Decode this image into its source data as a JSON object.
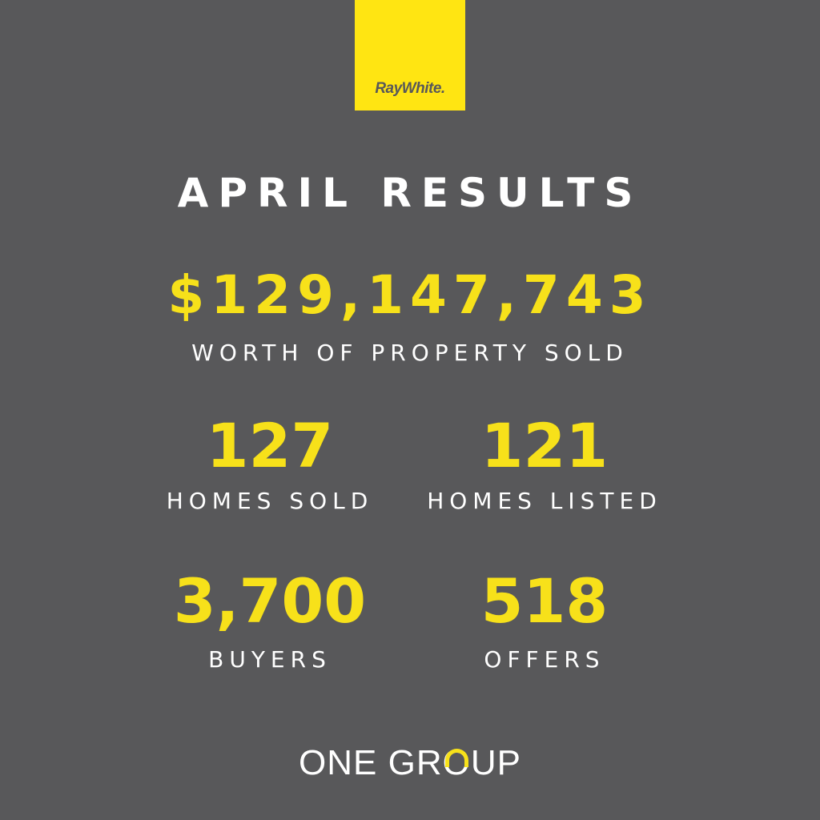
{
  "brand": {
    "logo_text": "RayWhite.",
    "logo_color": "#ffe512"
  },
  "title": "APRIL RESULTS",
  "headline": {
    "value": "$129,147,743",
    "label": "WORTH OF PROPERTY SOLD"
  },
  "stats": [
    {
      "value": "127",
      "label": "HOMES SOLD"
    },
    {
      "value": "121",
      "label": "HOMES LISTED"
    },
    {
      "value": "3,700",
      "label": "BUYERS"
    },
    {
      "value": "518",
      "label": "OFFERS"
    }
  ],
  "footer": {
    "part1": "ONE GR",
    "o": "O",
    "part2": "UP"
  },
  "colors": {
    "background": "#58585a",
    "accent": "#f7e11a",
    "text": "#ffffff"
  }
}
